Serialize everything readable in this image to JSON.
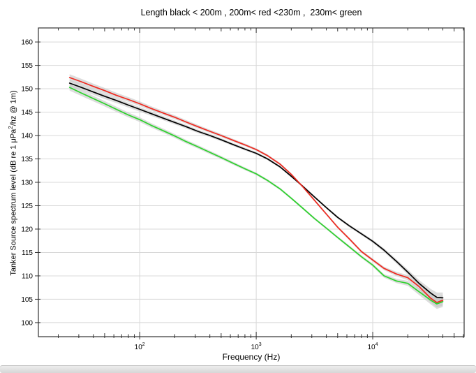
{
  "chart_data": {
    "type": "line",
    "title": "Length black < 200m , 200m< red <230m ,  230m< green",
    "xlabel": "Frequency (Hz)",
    "ylabel_pre": "Tanker Source spectrum level (dB re 1 μPa",
    "ylabel_sup": "2",
    "ylabel_post": "/hz @ 1m)",
    "x_scale": "log",
    "xlim": [
      13.5,
      60900
    ],
    "ylim": [
      97,
      163
    ],
    "grid": true,
    "legend_position": "none (encoded in title)",
    "yticks": [
      100,
      105,
      110,
      115,
      120,
      125,
      130,
      135,
      140,
      145,
      150,
      155,
      160
    ],
    "x_major_ticks": [
      {
        "value": 100,
        "base": "10",
        "exp": "2"
      },
      {
        "value": 1000,
        "base": "10",
        "exp": "3"
      },
      {
        "value": 10000,
        "base": "10",
        "exp": "4"
      }
    ],
    "x_minor_ticks": [
      20,
      30,
      40,
      50,
      60,
      70,
      80,
      90,
      200,
      300,
      400,
      500,
      600,
      700,
      800,
      900,
      2000,
      3000,
      4000,
      5000,
      6000,
      7000,
      8000,
      9000,
      20000,
      30000,
      40000,
      50000,
      60000
    ],
    "x_half_decade_ticks": [
      50,
      500,
      5000,
      50000
    ],
    "x": [
      25,
      31.5,
      40,
      50,
      63,
      80,
      100,
      125,
      160,
      200,
      250,
      315,
      400,
      500,
      630,
      800,
      1000,
      1250,
      1600,
      2000,
      2500,
      3150,
      4000,
      5000,
      6300,
      8000,
      10000,
      12500,
      16000,
      20000,
      25000,
      31500,
      35500,
      40000
    ],
    "series": [
      {
        "name": "black: tanker length < 200 m",
        "color": "#000000",
        "values": [
          151.2,
          150.3,
          149.3,
          148.4,
          147.5,
          146.5,
          145.6,
          144.7,
          143.7,
          142.8,
          141.9,
          140.9,
          140.0,
          139.1,
          138.1,
          137.1,
          136.2,
          135.0,
          133.3,
          131.3,
          129.2,
          126.9,
          124.6,
          122.5,
          120.7,
          119.0,
          117.4,
          115.5,
          113.1,
          110.8,
          108.4,
          106.3,
          105.4,
          105.3
        ]
      },
      {
        "name": "red: 200 m < tanker length < 230 m",
        "color": "#f0281e",
        "values": [
          152.4,
          151.5,
          150.5,
          149.6,
          148.6,
          147.7,
          146.8,
          145.8,
          144.8,
          143.9,
          142.9,
          141.9,
          140.9,
          140.0,
          139.0,
          138.0,
          137.0,
          135.7,
          133.9,
          131.7,
          129.1,
          126.2,
          123.2,
          120.4,
          117.9,
          115.2,
          113.4,
          111.6,
          110.4,
          109.6,
          107.7,
          105.2,
          104.3,
          104.8
        ]
      },
      {
        "name": "green: tanker length > 230 m",
        "color": "#2cd32c",
        "values": [
          150.3,
          149.1,
          147.9,
          146.8,
          145.6,
          144.4,
          143.4,
          142.2,
          141.0,
          139.9,
          138.7,
          137.6,
          136.4,
          135.3,
          134.1,
          132.9,
          131.8,
          130.4,
          128.6,
          126.6,
          124.5,
          122.3,
          120.2,
          118.2,
          116.2,
          114.1,
          112.3,
          110.0,
          108.9,
          108.4,
          106.6,
          104.8,
          104.0,
          104.5
        ]
      }
    ],
    "confidence_band": {
      "color": "#c6c6c6",
      "halfwidth_db": [
        0.7,
        0.65,
        0.6,
        0.58,
        0.55,
        0.52,
        0.5,
        0.48,
        0.45,
        0.42,
        0.4,
        0.38,
        0.36,
        0.34,
        0.32,
        0.3,
        0.28,
        0.27,
        0.26,
        0.25,
        0.25,
        0.25,
        0.25,
        0.26,
        0.28,
        0.3,
        0.33,
        0.38,
        0.45,
        0.55,
        0.7,
        0.9,
        1.05,
        1.15
      ]
    },
    "grid_color": "#d8d8d8",
    "axis_color": "#333333"
  },
  "chrome": {
    "bottom_bar_color": "#dcdcdc"
  }
}
